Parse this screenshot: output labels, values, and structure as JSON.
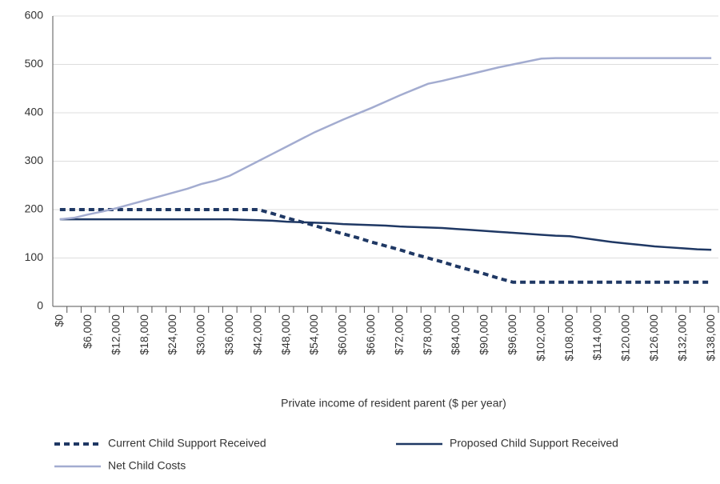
{
  "chart_data": {
    "type": "line",
    "x_label": "Private income of resident parent ($ per year)",
    "categories": [
      "$0",
      null,
      "$6,000",
      null,
      "$12,000",
      null,
      "$18,000",
      null,
      "$24,000",
      null,
      "$30,000",
      null,
      "$36,000",
      null,
      "$42,000",
      null,
      "$48,000",
      null,
      "$54,000",
      null,
      "$60,000",
      null,
      "$66,000",
      null,
      "$72,000",
      null,
      "$78,000",
      null,
      "$84,000",
      null,
      "$90,000",
      null,
      "$96,000",
      null,
      "$102,000",
      null,
      "$108,000",
      null,
      "$114,000",
      null,
      "$120,000",
      null,
      "$126,000",
      null,
      "$132,000",
      null,
      "$138,000"
    ],
    "series": [
      {
        "name": "Current Child Support Received",
        "color": "#1f3864",
        "dashed": true,
        "values": [
          200,
          200,
          200,
          200,
          200,
          200,
          200,
          200,
          200,
          200,
          200,
          200,
          200,
          200,
          200,
          192,
          183,
          175,
          167,
          158,
          150,
          142,
          133,
          125,
          117,
          108,
          100,
          92,
          83,
          75,
          67,
          58,
          50,
          50,
          50,
          50,
          50,
          50,
          50,
          50,
          50,
          50,
          50,
          50,
          50,
          50,
          50
        ]
      },
      {
        "name": "Proposed Child Support Received",
        "color": "#1f3864",
        "dashed": false,
        "values": [
          180,
          180,
          180,
          180,
          180,
          180,
          180,
          180,
          180,
          180,
          180,
          180,
          180,
          179,
          178,
          177,
          175,
          174,
          173,
          172,
          170,
          169,
          168,
          167,
          165,
          164,
          163,
          162,
          160,
          158,
          156,
          154,
          152,
          150,
          148,
          146,
          145,
          141,
          137,
          133,
          130,
          127,
          124,
          122,
          120,
          118,
          117
        ]
      },
      {
        "name": "Net Child Costs",
        "color": "#a3acd0",
        "dashed": false,
        "values": [
          180,
          183,
          190,
          196,
          203,
          211,
          219,
          227,
          235,
          243,
          253,
          260,
          270,
          285,
          300,
          315,
          330,
          345,
          360,
          373,
          386,
          398,
          410,
          423,
          436,
          448,
          460,
          466,
          473,
          480,
          487,
          494,
          500,
          506,
          512,
          513,
          513,
          513,
          513,
          513,
          513,
          513,
          513,
          513,
          513,
          513,
          513
        ]
      }
    ],
    "ylim": [
      0,
      600
    ],
    "yticks": [
      0,
      100,
      200,
      300,
      400,
      500,
      600
    ],
    "grid": true
  }
}
